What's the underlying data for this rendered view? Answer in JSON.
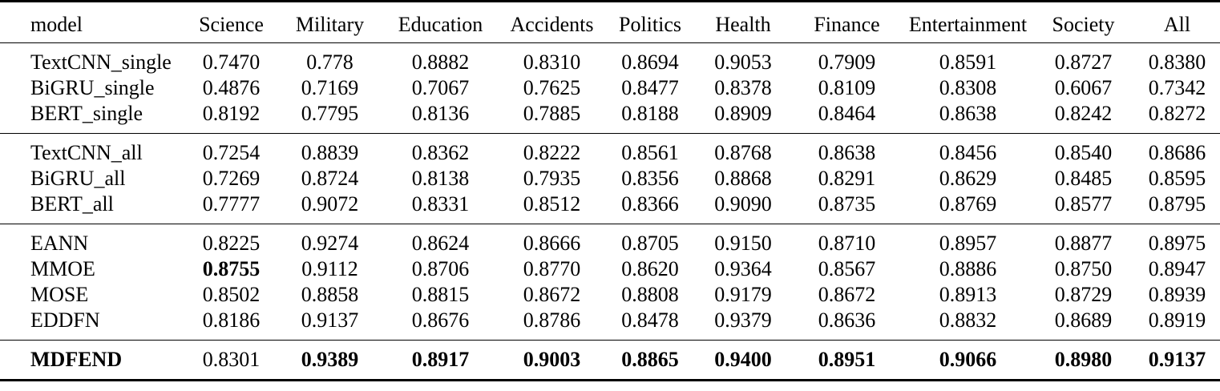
{
  "table": {
    "header": [
      "model",
      "Science",
      "Military",
      "Education",
      "Accidents",
      "Politics",
      "Health",
      "Finance",
      "Entertainment",
      "Society",
      "All"
    ],
    "groups": [
      {
        "rows": [
          {
            "model": "TextCNN_single",
            "model_bold": false,
            "values": [
              "0.7470",
              "0.778",
              "0.8882",
              "0.8310",
              "0.8694",
              "0.9053",
              "0.7909",
              "0.8591",
              "0.8727",
              "0.8380"
            ],
            "bold_indices": []
          },
          {
            "model": "BiGRU_single",
            "model_bold": false,
            "values": [
              "0.4876",
              "0.7169",
              "0.7067",
              "0.7625",
              "0.8477",
              "0.8378",
              "0.8109",
              "0.8308",
              "0.6067",
              "0.7342"
            ],
            "bold_indices": []
          },
          {
            "model": "BERT_single",
            "model_bold": false,
            "values": [
              "0.8192",
              "0.7795",
              "0.8136",
              "0.7885",
              "0.8188",
              "0.8909",
              "0.8464",
              "0.8638",
              "0.8242",
              "0.8272"
            ],
            "bold_indices": []
          }
        ]
      },
      {
        "rows": [
          {
            "model": "TextCNN_all",
            "model_bold": false,
            "values": [
              "0.7254",
              "0.8839",
              "0.8362",
              "0.8222",
              "0.8561",
              "0.8768",
              "0.8638",
              "0.8456",
              "0.8540",
              "0.8686"
            ],
            "bold_indices": []
          },
          {
            "model": "BiGRU_all",
            "model_bold": false,
            "values": [
              "0.7269",
              "0.8724",
              "0.8138",
              "0.7935",
              "0.8356",
              "0.8868",
              "0.8291",
              "0.8629",
              "0.8485",
              "0.8595"
            ],
            "bold_indices": []
          },
          {
            "model": "BERT_all",
            "model_bold": false,
            "values": [
              "0.7777",
              "0.9072",
              "0.8331",
              "0.8512",
              "0.8366",
              "0.9090",
              "0.8735",
              "0.8769",
              "0.8577",
              "0.8795"
            ],
            "bold_indices": []
          }
        ]
      },
      {
        "rows": [
          {
            "model": "EANN",
            "model_bold": false,
            "values": [
              "0.8225",
              "0.9274",
              "0.8624",
              "0.8666",
              "0.8705",
              "0.9150",
              "0.8710",
              "0.8957",
              "0.8877",
              "0.8975"
            ],
            "bold_indices": []
          },
          {
            "model": "MMOE",
            "model_bold": false,
            "values": [
              "0.8755",
              "0.9112",
              "0.8706",
              "0.8770",
              "0.8620",
              "0.9364",
              "0.8567",
              "0.8886",
              "0.8750",
              "0.8947"
            ],
            "bold_indices": [
              0
            ]
          },
          {
            "model": "MOSE",
            "model_bold": false,
            "values": [
              "0.8502",
              "0.8858",
              "0.8815",
              "0.8672",
              "0.8808",
              "0.9179",
              "0.8672",
              "0.8913",
              "0.8729",
              "0.8939"
            ],
            "bold_indices": []
          },
          {
            "model": "EDDFN",
            "model_bold": false,
            "values": [
              "0.8186",
              "0.9137",
              "0.8676",
              "0.8786",
              "0.8478",
              "0.9379",
              "0.8636",
              "0.8832",
              "0.8689",
              "0.8919"
            ],
            "bold_indices": []
          }
        ]
      },
      {
        "rows": [
          {
            "model": "MDFEND",
            "model_bold": true,
            "values": [
              "0.8301",
              "0.9389",
              "0.8917",
              "0.9003",
              "0.8865",
              "0.9400",
              "0.8951",
              "0.9066",
              "0.8980",
              "0.9137"
            ],
            "bold_indices": [
              1,
              2,
              3,
              4,
              5,
              6,
              7,
              8,
              9
            ]
          }
        ]
      }
    ]
  }
}
